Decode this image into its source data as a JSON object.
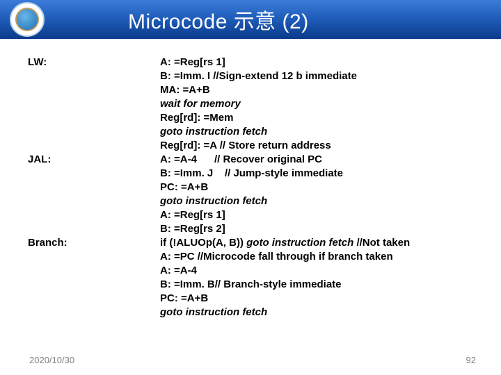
{
  "header": {
    "title": "Microcode 示意 (2)"
  },
  "labels": {
    "lw": "LW:",
    "jal": "JAL:",
    "branch": "Branch:"
  },
  "code": {
    "l1": "A: =Reg[rs 1]",
    "l2": "B: =Imm. I   //Sign-extend 12 b immediate",
    "l3": "MA: =A+B",
    "l4": "wait for memory",
    "l5": "Reg[rd]: =Mem",
    "l6": "goto instruction fetch",
    "l7": "Reg[rd]: =A  // Store return address",
    "l8a": "A: =A-4",
    "l8b": "// Recover original PC",
    "l9a": "B: =Imm. J",
    "l9b": "// Jump-style immediate",
    "l10": "PC: =A+B",
    "l11": "goto instruction fetch",
    "l12": "A: =Reg[rs 1]",
    "l13": "B: =Reg[rs 2]",
    "l14a": "if (!ALUOp(A, B)) ",
    "l14b": "goto instruction fetch ",
    "l14c": "//Not taken",
    "l15": "A: =PC  //Microcode fall through if branch taken",
    "l16": "A: =A-4",
    "l17": "B: =Imm. B// Branch-style immediate",
    "l18": "PC: =A+B",
    "l19": "goto instruction fetch"
  },
  "footer": {
    "date": "2020/10/30",
    "page": "92"
  }
}
